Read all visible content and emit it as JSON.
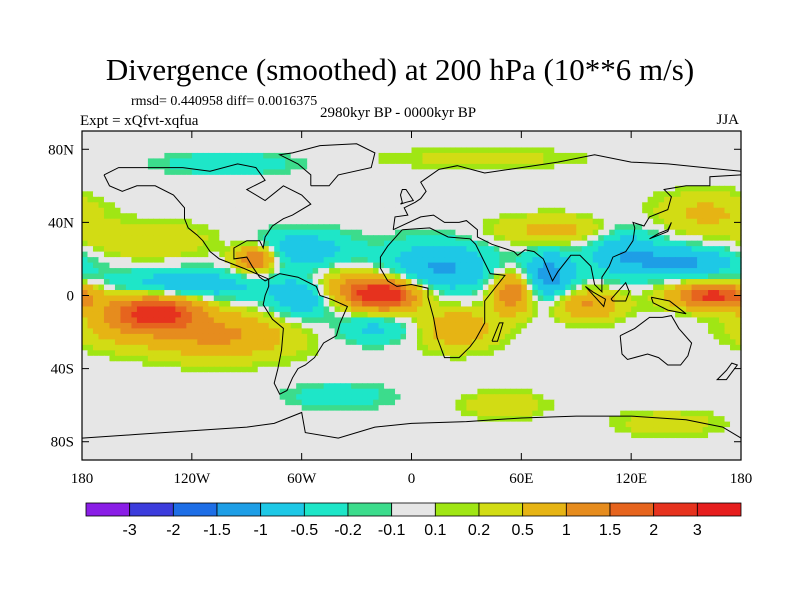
{
  "chart_data": {
    "type": "heatmap",
    "title": "Divergence (smoothed) at 200 hPa (10**6 m/s)",
    "stats_text": "rmsd= 0.440958 diff= 0.0016375",
    "experiment_text": "Expt = xQfvt-xqfua",
    "period_text": "2980kyr BP - 0000kyr BP",
    "season_text": "JJA",
    "x_ticks": [
      {
        "value": -180,
        "label": "180"
      },
      {
        "value": -120,
        "label": "120W"
      },
      {
        "value": -60,
        "label": "60W"
      },
      {
        "value": 0,
        "label": "0"
      },
      {
        "value": 60,
        "label": "60E"
      },
      {
        "value": 120,
        "label": "120E"
      },
      {
        "value": 180,
        "label": "180"
      }
    ],
    "y_ticks": [
      {
        "value": 80,
        "label": "80N"
      },
      {
        "value": 40,
        "label": "40N"
      },
      {
        "value": 0,
        "label": "0"
      },
      {
        "value": -40,
        "label": "40S"
      },
      {
        "value": -80,
        "label": "80S"
      }
    ],
    "xlim": [
      -180,
      180
    ],
    "ylim": [
      -90,
      90
    ],
    "colorbar": {
      "levels": [
        "-3",
        "-2",
        "-1.5",
        "-1",
        "-0.5",
        "-0.2",
        "-0.1",
        "0.1",
        "0.2",
        "0.5",
        "1",
        "1.5",
        "2",
        "3"
      ],
      "colors": [
        "#8a1ee6",
        "#3c3cdc",
        "#1e6ee6",
        "#1e9ee6",
        "#1ec8e6",
        "#1ee6c8",
        "#3cdc8c",
        "#e6e6e6",
        "#a0e614",
        "#d2dc14",
        "#e6b414",
        "#e68c1e",
        "#e6641e",
        "#e6321e",
        "#e61e1e"
      ]
    },
    "features": [
      {
        "name": "east-pacific-south-max",
        "lon": -140,
        "lat": -8,
        "value": 2.2,
        "sx": 18,
        "sy": 7
      },
      {
        "name": "east-pacific-south-band",
        "lon": -105,
        "lat": -22,
        "value": 1.1,
        "sx": 28,
        "sy": 9
      },
      {
        "name": "south-pacific-band",
        "lon": -160,
        "lat": -18,
        "value": 0.5,
        "sx": 20,
        "sy": 8
      },
      {
        "name": "caribbean-max",
        "lon": -85,
        "lat": 20,
        "value": 1.7,
        "sx": 8,
        "sy": 5
      },
      {
        "name": "north-pacific-band",
        "lon": -145,
        "lat": 30,
        "value": 0.5,
        "sx": 25,
        "sy": 7
      },
      {
        "name": "equatorial-pacific-min",
        "lon": -125,
        "lat": 5,
        "value": -1.0,
        "sx": 30,
        "sy": 6
      },
      {
        "name": "north-atlantic-min",
        "lon": -60,
        "lat": 25,
        "value": -0.9,
        "sx": 18,
        "sy": 7
      },
      {
        "name": "amazon-min",
        "lon": -60,
        "lat": 0,
        "value": -1.2,
        "sx": 12,
        "sy": 8
      },
      {
        "name": "atlantic-max",
        "lon": -15,
        "lat": 0,
        "value": 2.3,
        "sx": 14,
        "sy": 6
      },
      {
        "name": "tropical-atlantic-band",
        "lon": -35,
        "lat": 5,
        "value": 0.9,
        "sx": 22,
        "sy": 7
      },
      {
        "name": "south-atlantic-min",
        "lon": -20,
        "lat": -18,
        "value": -0.6,
        "sx": 15,
        "sy": 6
      },
      {
        "name": "africa-min",
        "lon": 15,
        "lat": 15,
        "value": -1.1,
        "sx": 22,
        "sy": 10
      },
      {
        "name": "africa-south-max",
        "lon": 25,
        "lat": -18,
        "value": 0.9,
        "sx": 15,
        "sy": 8
      },
      {
        "name": "east-africa-max",
        "lon": 55,
        "lat": 2,
        "value": 1.6,
        "sx": 8,
        "sy": 8
      },
      {
        "name": "india-min",
        "lon": 75,
        "lat": 10,
        "value": -1.3,
        "sx": 10,
        "sy": 10
      },
      {
        "name": "asia-band",
        "lon": 80,
        "lat": 35,
        "value": 0.7,
        "sx": 25,
        "sy": 6
      },
      {
        "name": "east-asia-min",
        "lon": 115,
        "lat": 25,
        "value": -0.9,
        "sx": 15,
        "sy": 10
      },
      {
        "name": "indonesia-max",
        "lon": 95,
        "lat": -5,
        "value": 1.1,
        "sx": 14,
        "sy": 6
      },
      {
        "name": "west-pacific-max",
        "lon": 165,
        "lat": 0,
        "value": 2.2,
        "sx": 16,
        "sy": 5
      },
      {
        "name": "northwest-pacific-min",
        "lon": 150,
        "lat": 18,
        "value": -1.1,
        "sx": 20,
        "sy": 6
      },
      {
        "name": "north-pacific-high",
        "lon": 160,
        "lat": 45,
        "value": 0.6,
        "sx": 20,
        "sy": 8
      },
      {
        "name": "arctic-min",
        "lon": -100,
        "lat": 72,
        "value": -0.5,
        "sx": 25,
        "sy": 4
      },
      {
        "name": "arctic-band",
        "lon": 40,
        "lat": 75,
        "value": 0.3,
        "sx": 40,
        "sy": 4
      },
      {
        "name": "southern-ocean-max",
        "lon": 50,
        "lat": -60,
        "value": 0.5,
        "sx": 15,
        "sy": 5
      },
      {
        "name": "southern-ocean-max-2",
        "lon": 140,
        "lat": -70,
        "value": 0.4,
        "sx": 20,
        "sy": 5
      },
      {
        "name": "southern-ocean-min",
        "lon": -40,
        "lat": -55,
        "value": -0.4,
        "sx": 20,
        "sy": 5
      }
    ]
  }
}
